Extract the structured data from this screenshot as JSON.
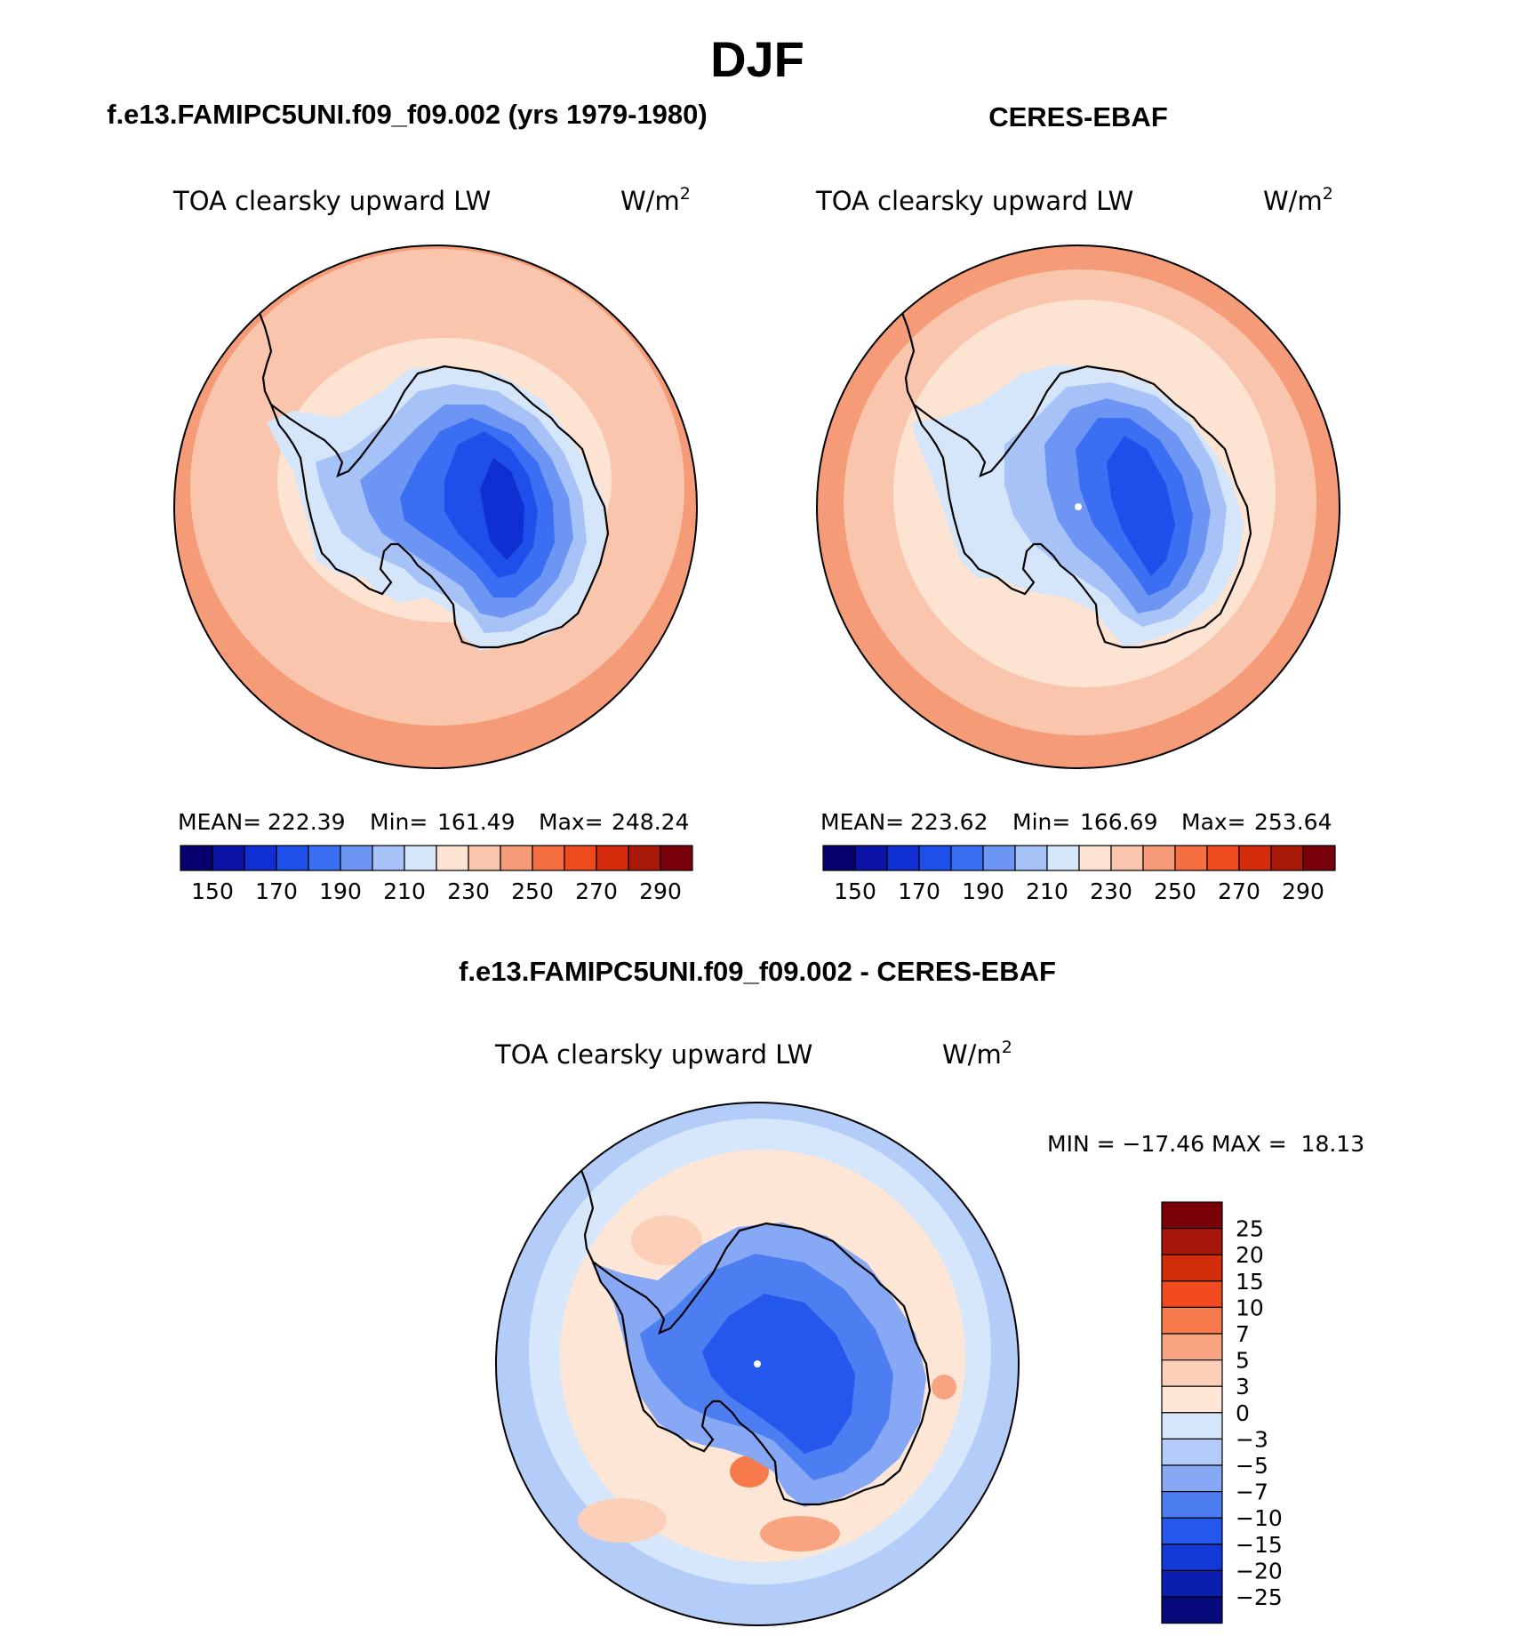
{
  "figure": {
    "title": "DJF",
    "colors": {
      "background": "#ffffff",
      "ocean_warm": "#f9c6ad",
      "ocean_pale": "#fde3d2",
      "ocean_outer": "#f59b77",
      "coast": "#000000"
    }
  },
  "chart_data": [
    {
      "type": "heatmap",
      "projection": "south-polar-stereographic",
      "header": "f.e13.FAMIPC5UNI.f09_f09.002 (yrs 1979-1980)",
      "title": "TOA clearsky upward LW",
      "units": "W/m",
      "units_superscript": "2",
      "stats": {
        "mean_label": "MEAN=",
        "mean": "222.39",
        "min_label": "Min=",
        "min": "161.49",
        "max_label": "Max=",
        "max": "248.24"
      },
      "colorbar": {
        "orientation": "horizontal",
        "levels": [
          150,
          160,
          170,
          180,
          190,
          200,
          210,
          220,
          230,
          240,
          250,
          260,
          270,
          280,
          290
        ],
        "tick_labels": [
          "150",
          "170",
          "190",
          "210",
          "230",
          "250",
          "270",
          "290"
        ],
        "colors": [
          "#08006e",
          "#0a13a6",
          "#0f2fd2",
          "#1f4fea",
          "#3a6ef3",
          "#6c95f4",
          "#a6c2f7",
          "#d5e6fb",
          "#fde3d2",
          "#f9c6ad",
          "#f59b77",
          "#f56e42",
          "#f04a1f",
          "#d42c0c",
          "#a8190a",
          "#780009"
        ]
      }
    },
    {
      "type": "heatmap",
      "projection": "south-polar-stereographic",
      "header": "CERES-EBAF",
      "title": "TOA clearsky upward LW",
      "units": "W/m",
      "units_superscript": "2",
      "stats": {
        "mean_label": "MEAN=",
        "mean": "223.62",
        "min_label": "Min=",
        "min": "166.69",
        "max_label": "Max=",
        "max": "253.64"
      },
      "colorbar": {
        "orientation": "horizontal",
        "levels": [
          150,
          160,
          170,
          180,
          190,
          200,
          210,
          220,
          230,
          240,
          250,
          260,
          270,
          280,
          290
        ],
        "tick_labels": [
          "150",
          "170",
          "190",
          "210",
          "230",
          "250",
          "270",
          "290"
        ],
        "colors": [
          "#08006e",
          "#0a13a6",
          "#0f2fd2",
          "#1f4fea",
          "#3a6ef3",
          "#6c95f4",
          "#a6c2f7",
          "#d5e6fb",
          "#fde3d2",
          "#f9c6ad",
          "#f59b77",
          "#f56e42",
          "#f04a1f",
          "#d42c0c",
          "#a8190a",
          "#780009"
        ]
      }
    },
    {
      "type": "heatmap",
      "projection": "south-polar-stereographic",
      "header": "f.e13.FAMIPC5UNI.f09_f09.002 - CERES-EBAF",
      "title": "TOA clearsky upward LW",
      "units": "W/m",
      "units_superscript": "2",
      "stats": {
        "text": "MIN = −17.46 MAX =  18.13"
      },
      "colorbar": {
        "orientation": "vertical",
        "levels": [
          25,
          20,
          15,
          10,
          7,
          5,
          3,
          0,
          -3,
          -5,
          -7,
          -10,
          -15,
          -20,
          -25
        ],
        "tick_labels": [
          "25",
          "20",
          "15",
          "10",
          "7",
          "5",
          "3",
          "0",
          "−3",
          "−5",
          "−7",
          "−10",
          "−15",
          "−20",
          "−25"
        ],
        "colors": [
          "#7a0008",
          "#a8180a",
          "#d22e0c",
          "#f04a1e",
          "#f67a4c",
          "#f9a480",
          "#fcd0b8",
          "#fde6d6",
          "#d7e7fb",
          "#b3ccf8",
          "#86a8f5",
          "#4d7ef1",
          "#2457ec",
          "#1239d8",
          "#0a1fb0",
          "#070a7a"
        ]
      }
    }
  ]
}
